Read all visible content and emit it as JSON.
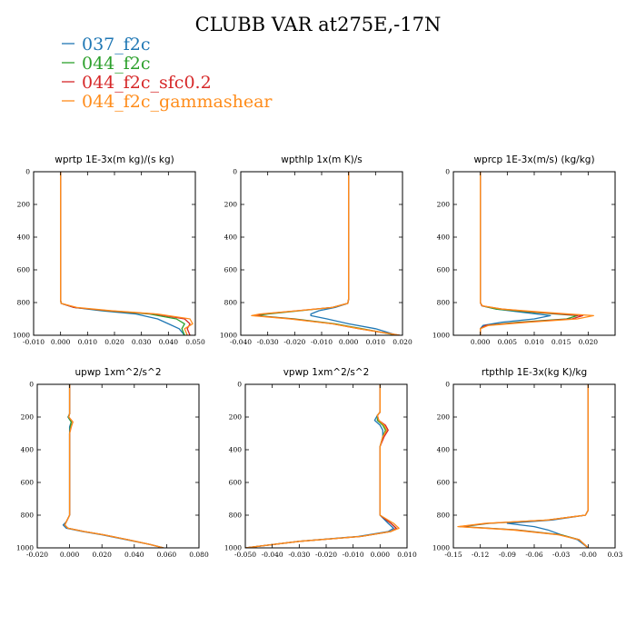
{
  "figure": {
    "title": "CLUBB VAR at275E,-17N"
  },
  "legend": [
    {
      "label": "037_f2c",
      "color": "#1f77b4"
    },
    {
      "label": "044_f2c",
      "color": "#2ca02c"
    },
    {
      "label": "044_f2c_sfc0.2",
      "color": "#d62728"
    },
    {
      "label": "044_f2c_gammashear",
      "color": "#ff8c1a"
    }
  ],
  "chart_data": [
    {
      "type": "line",
      "title": "wprtp  1E-3x(m kg)/(s kg)",
      "xlim": [
        -0.01,
        0.05
      ],
      "ylim": [
        1000,
        0
      ],
      "xticks": [
        "-0.010",
        "0.000",
        "0.010",
        "0.020",
        "0.030",
        "0.040",
        "0.050"
      ],
      "xtick_values": [
        -0.01,
        0.0,
        0.01,
        0.02,
        0.03,
        0.04,
        0.05
      ],
      "yticks": [
        0,
        200,
        400,
        600,
        800,
        1000
      ],
      "series": [
        {
          "name": "037_f2c",
          "y": [
            0,
            780,
            805,
            830,
            850,
            870,
            900,
            930,
            960,
            1000
          ],
          "x": [
            0,
            0,
            0.0002,
            0.005,
            0.015,
            0.028,
            0.036,
            0.04,
            0.044,
            0.046
          ]
        },
        {
          "name": "044_f2c",
          "y": [
            0,
            780,
            805,
            830,
            850,
            870,
            900,
            930,
            960,
            1000
          ],
          "x": [
            0,
            0,
            0.0002,
            0.005,
            0.017,
            0.033,
            0.043,
            0.046,
            0.045,
            0.046
          ]
        },
        {
          "name": "044_f2c_sfc0.2",
          "y": [
            0,
            780,
            805,
            830,
            850,
            870,
            900,
            930,
            960,
            1000
          ],
          "x": [
            0,
            0,
            0.0002,
            0.005,
            0.018,
            0.035,
            0.046,
            0.048,
            0.047,
            0.048
          ]
        },
        {
          "name": "044_f2c_gammashear",
          "y": [
            0,
            780,
            805,
            830,
            850,
            870,
            900,
            930,
            960,
            1000
          ],
          "x": [
            0,
            0,
            0.0002,
            0.006,
            0.019,
            0.036,
            0.048,
            0.049,
            0.046,
            0.047
          ]
        }
      ]
    },
    {
      "type": "line",
      "title": "wpthlp  1x(m K)/s",
      "xlim": [
        -0.04,
        0.02
      ],
      "ylim": [
        1000,
        0
      ],
      "xticks": [
        "-0.040",
        "-0.030",
        "-0.020",
        "-0.010",
        "0.000",
        "0.010",
        "0.020"
      ],
      "xtick_values": [
        -0.04,
        -0.03,
        -0.02,
        -0.01,
        0.0,
        0.01,
        0.02
      ],
      "yticks": [
        0,
        200,
        400,
        600,
        800,
        1000
      ],
      "series": [
        {
          "name": "037_f2c",
          "y": [
            0,
            780,
            805,
            830,
            850,
            870,
            880,
            900,
            930,
            960,
            1000
          ],
          "x": [
            0,
            0,
            -0.0003,
            -0.005,
            -0.011,
            -0.014,
            -0.014,
            -0.008,
            0.0,
            0.01,
            0.018
          ]
        },
        {
          "name": "044_f2c",
          "y": [
            0,
            780,
            805,
            830,
            850,
            870,
            880,
            900,
            930,
            960,
            1000
          ],
          "x": [
            0,
            0,
            -0.0003,
            -0.006,
            -0.018,
            -0.03,
            -0.034,
            -0.02,
            -0.005,
            0.005,
            0.018
          ]
        },
        {
          "name": "044_f2c_sfc0.2",
          "y": [
            0,
            780,
            805,
            830,
            850,
            870,
            880,
            900,
            930,
            960,
            1000
          ],
          "x": [
            0,
            0,
            -0.0003,
            -0.006,
            -0.019,
            -0.032,
            -0.035,
            -0.021,
            -0.006,
            0.004,
            0.019
          ]
        },
        {
          "name": "044_f2c_gammashear",
          "y": [
            0,
            780,
            805,
            830,
            850,
            870,
            880,
            900,
            930,
            960,
            1000
          ],
          "x": [
            0,
            0,
            -0.0003,
            -0.006,
            -0.019,
            -0.033,
            -0.036,
            -0.022,
            -0.006,
            0.004,
            0.019
          ]
        }
      ]
    },
    {
      "type": "line",
      "title": "wprcp  1E-3x(m/s) (kg/kg)",
      "xlim": [
        -0.005,
        0.025
      ],
      "ylim": [
        1000,
        0
      ],
      "xticks": [
        "0.000",
        "0.005",
        "0.010",
        "0.015",
        "0.020"
      ],
      "xtick_values": [
        0.0,
        0.005,
        0.01,
        0.015,
        0.02
      ],
      "yticks": [
        0,
        200,
        400,
        600,
        800,
        1000
      ],
      "series": [
        {
          "name": "037_f2c",
          "y": [
            0,
            800,
            820,
            840,
            860,
            880,
            900,
            920,
            940,
            960,
            1000
          ],
          "x": [
            0,
            0,
            0.0003,
            0.003,
            0.008,
            0.013,
            0.01,
            0.004,
            0.0005,
            0,
            0
          ]
        },
        {
          "name": "044_f2c",
          "y": [
            0,
            800,
            820,
            840,
            860,
            880,
            900,
            920,
            940,
            960,
            1000
          ],
          "x": [
            0,
            0,
            0.0003,
            0.003,
            0.01,
            0.018,
            0.016,
            0.007,
            0.001,
            0,
            0
          ]
        },
        {
          "name": "044_f2c_sfc0.2",
          "y": [
            0,
            800,
            820,
            840,
            860,
            880,
            900,
            920,
            940,
            960,
            1000
          ],
          "x": [
            0,
            0,
            0.0003,
            0.004,
            0.011,
            0.019,
            0.017,
            0.008,
            0.001,
            0,
            0
          ]
        },
        {
          "name": "044_f2c_gammashear",
          "y": [
            0,
            800,
            820,
            840,
            860,
            880,
            900,
            920,
            940,
            960,
            1000
          ],
          "x": [
            0,
            0,
            0.0004,
            0.004,
            0.012,
            0.021,
            0.018,
            0.009,
            0.0015,
            0,
            0
          ]
        }
      ]
    },
    {
      "type": "line",
      "title": "upwp  1xm^2/s^2",
      "xlim": [
        -0.02,
        0.08
      ],
      "ylim": [
        1000,
        0
      ],
      "xticks": [
        "-0.020",
        "0.000",
        "0.020",
        "0.040",
        "0.060",
        "0.080"
      ],
      "xtick_values": [
        -0.02,
        0.0,
        0.02,
        0.04,
        0.06,
        0.08
      ],
      "yticks": [
        0,
        200,
        400,
        600,
        800,
        1000
      ],
      "series": [
        {
          "name": "037_f2c",
          "y": [
            0,
            180,
            200,
            230,
            260,
            300,
            800,
            840,
            860,
            880,
            900,
            920,
            950,
            980,
            1000
          ],
          "x": [
            0,
            0,
            -0.001,
            0.001,
            0.0,
            0,
            0,
            -0.002,
            -0.004,
            -0.002,
            0.008,
            0.02,
            0.035,
            0.05,
            0.058
          ]
        },
        {
          "name": "044_f2c",
          "y": [
            0,
            180,
            200,
            230,
            260,
            300,
            800,
            840,
            860,
            880,
            900,
            920,
            950,
            980,
            1000
          ],
          "x": [
            0,
            0,
            -0.0008,
            0.001,
            0.0005,
            0,
            0,
            -0.002,
            -0.003,
            -0.001,
            0.009,
            0.021,
            0.036,
            0.05,
            0.058
          ]
        },
        {
          "name": "044_f2c_sfc0.2",
          "y": [
            0,
            180,
            200,
            230,
            260,
            300,
            800,
            840,
            860,
            880,
            900,
            920,
            950,
            980,
            1000
          ],
          "x": [
            0,
            0,
            -0.0005,
            0.002,
            0.001,
            0,
            0,
            -0.002,
            -0.003,
            -0.001,
            0.009,
            0.021,
            0.036,
            0.05,
            0.058
          ]
        },
        {
          "name": "044_f2c_gammashear",
          "y": [
            0,
            180,
            200,
            230,
            260,
            300,
            800,
            840,
            860,
            880,
            900,
            920,
            950,
            980,
            1000
          ],
          "x": [
            0,
            0,
            -0.0005,
            0.002,
            0.001,
            0,
            0,
            -0.002,
            -0.003,
            -0.001,
            0.009,
            0.021,
            0.036,
            0.05,
            0.058
          ]
        }
      ]
    },
    {
      "type": "line",
      "title": "vpwp  1xm^2/s^2",
      "xlim": [
        -0.05,
        0.01
      ],
      "ylim": [
        1000,
        0
      ],
      "xticks": [
        "-0.050",
        "-0.040",
        "-0.030",
        "-0.020",
        "-0.010",
        "0.000",
        "0.010"
      ],
      "xtick_values": [
        -0.05,
        -0.04,
        -0.03,
        -0.02,
        -0.01,
        0.0,
        0.01
      ],
      "yticks": [
        0,
        200,
        400,
        600,
        800,
        1000
      ],
      "series": [
        {
          "name": "037_f2c",
          "y": [
            0,
            170,
            190,
            220,
            250,
            280,
            320,
            380,
            800,
            850,
            880,
            900,
            930,
            960,
            1000
          ],
          "x": [
            0,
            0,
            -0.001,
            -0.002,
            0.0,
            0.001,
            0.001,
            0,
            0,
            0.003,
            0.005,
            0.003,
            -0.008,
            -0.03,
            -0.05
          ]
        },
        {
          "name": "044_f2c",
          "y": [
            0,
            170,
            190,
            220,
            250,
            280,
            320,
            380,
            800,
            850,
            880,
            900,
            930,
            960,
            1000
          ],
          "x": [
            0,
            0,
            -0.001,
            -0.001,
            0.001,
            0.002,
            0.001,
            0,
            0,
            0.004,
            0.006,
            0.004,
            -0.007,
            -0.03,
            -0.05
          ]
        },
        {
          "name": "044_f2c_sfc0.2",
          "y": [
            0,
            170,
            190,
            220,
            250,
            280,
            320,
            380,
            800,
            850,
            880,
            900,
            930,
            960,
            1000
          ],
          "x": [
            0,
            0,
            -0.001,
            -0.0005,
            0.002,
            0.003,
            0.0015,
            0,
            0,
            0.004,
            0.006,
            0.004,
            -0.007,
            -0.03,
            -0.05
          ]
        },
        {
          "name": "044_f2c_gammashear",
          "y": [
            0,
            170,
            190,
            220,
            250,
            280,
            320,
            380,
            800,
            850,
            880,
            900,
            930,
            960,
            1000
          ],
          "x": [
            0,
            0,
            -0.001,
            -0.0005,
            0.0015,
            0.0025,
            0.001,
            0,
            0,
            0.005,
            0.007,
            0.004,
            -0.007,
            -0.03,
            -0.05
          ]
        }
      ]
    },
    {
      "type": "line",
      "title": "rtpthlp  1E-3x(kg K)/kg",
      "xlim": [
        -0.15,
        0.03
      ],
      "ylim": [
        1000,
        0
      ],
      "xticks": [
        "-0.15",
        "-0.12",
        "-0.09",
        "-0.06",
        "-0.03",
        "-0.00",
        "0.03"
      ],
      "xtick_values": [
        -0.15,
        -0.12,
        -0.09,
        -0.06,
        -0.03,
        0.0,
        0.03
      ],
      "yticks": [
        0,
        200,
        400,
        600,
        800,
        1000
      ],
      "series": [
        {
          "name": "037_f2c",
          "y": [
            0,
            770,
            800,
            830,
            850,
            870,
            890,
            920,
            950,
            1000
          ],
          "x": [
            0,
            0,
            -0.003,
            -0.04,
            -0.09,
            -0.06,
            -0.045,
            -0.03,
            -0.012,
            0
          ]
        },
        {
          "name": "044_f2c",
          "y": [
            0,
            770,
            800,
            830,
            850,
            870,
            890,
            920,
            950,
            1000
          ],
          "x": [
            0,
            0,
            -0.003,
            -0.045,
            -0.11,
            -0.14,
            -0.08,
            -0.03,
            -0.01,
            0
          ]
        },
        {
          "name": "044_f2c_sfc0.2",
          "y": [
            0,
            770,
            800,
            830,
            850,
            870,
            890,
            920,
            950,
            1000
          ],
          "x": [
            0,
            0,
            -0.003,
            -0.045,
            -0.112,
            -0.143,
            -0.082,
            -0.032,
            -0.01,
            0
          ]
        },
        {
          "name": "044_f2c_gammashear",
          "y": [
            0,
            770,
            800,
            830,
            850,
            870,
            890,
            920,
            950,
            1000
          ],
          "x": [
            0,
            0,
            -0.003,
            -0.046,
            -0.115,
            -0.145,
            -0.085,
            -0.033,
            -0.01,
            0
          ]
        }
      ]
    }
  ]
}
